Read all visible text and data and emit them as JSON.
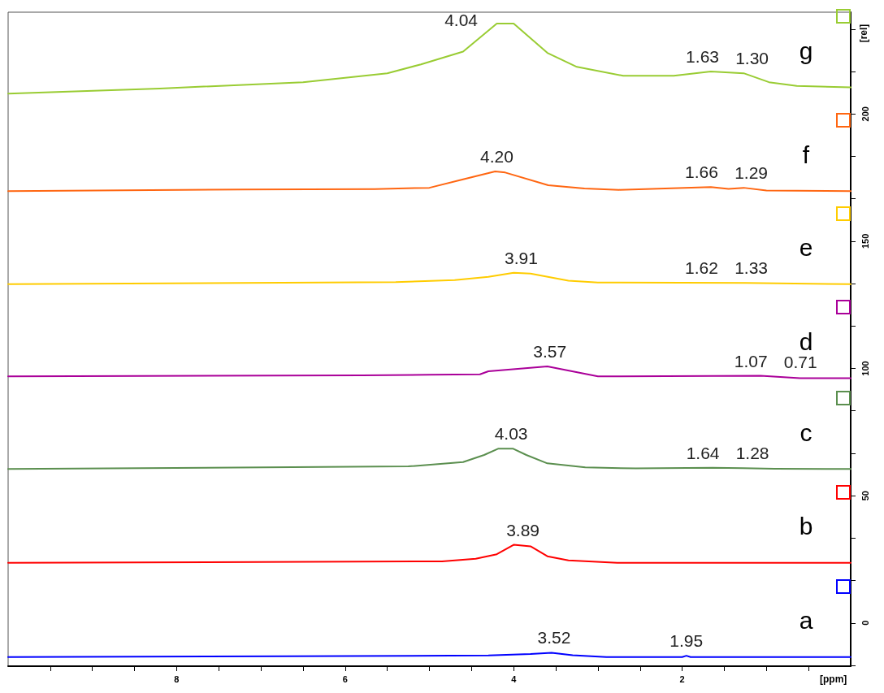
{
  "chart_data": {
    "type": "line",
    "xlabel": "[ppm]",
    "ylabel": "[rel]",
    "xlim": [
      10,
      0
    ],
    "xticks": [
      {
        "value": 9.5,
        "label": null
      },
      {
        "value": 9,
        "label": null
      },
      {
        "value": 8.5,
        "label": null
      },
      8,
      {
        "value": 7.5,
        "label": null
      },
      {
        "value": 7,
        "label": null
      },
      {
        "value": 6.5,
        "label": null
      },
      6,
      {
        "value": 5.5,
        "label": null
      },
      {
        "value": 5,
        "label": null
      },
      {
        "value": 4.5,
        "label": null
      },
      4,
      {
        "value": 3.5,
        "label": null
      },
      {
        "value": 3,
        "label": null
      },
      {
        "value": 2.5,
        "label": null
      },
      2,
      {
        "value": 1.5,
        "label": null
      },
      {
        "value": 1,
        "label": null
      },
      {
        "value": 0.5,
        "label": null
      }
    ],
    "ylim": [
      -17,
      240
    ],
    "yticks": [
      {
        "value": -16.67,
        "label": null
      },
      0,
      {
        "value": 16.67,
        "label": null
      },
      {
        "value": 33.33,
        "label": null
      },
      50,
      {
        "value": 66.67,
        "label": null
      },
      {
        "value": 83.33,
        "label": null
      },
      100,
      {
        "value": 116.67,
        "label": null
      },
      {
        "value": 133.33,
        "label": null
      },
      150,
      {
        "value": 166.67,
        "label": null
      },
      {
        "value": 183.33,
        "label": null
      },
      200,
      {
        "value": 216.67,
        "label": null
      },
      {
        "value": 233.33,
        "label": null
      }
    ],
    "marker": "none",
    "line_style": "solid",
    "series": [
      {
        "name": "a",
        "color": "#0000ff",
        "x": [
          10,
          6.7,
          4.3,
          3.8,
          3.55,
          3.3,
          2.9,
          2.0,
          1.95,
          1.9,
          0
        ],
        "values": [
          -13.4,
          -13.1,
          -12.8,
          -12.2,
          -11.7,
          -12.7,
          -13.4,
          -13.4,
          -12.9,
          -13.4,
          -13.4
        ]
      },
      {
        "name": "b",
        "color": "#ff0000",
        "x": [
          10,
          4.85,
          4.45,
          4.2,
          4.0,
          3.8,
          3.6,
          3.35,
          2.77,
          0
        ],
        "values": [
          23.6,
          24.2,
          25.2,
          27,
          30.7,
          30.1,
          26.2,
          24.6,
          23.6,
          23.6
        ]
      },
      {
        "name": "c",
        "color": "#5b8f4f",
        "x": [
          10,
          5.25,
          4.6,
          4.35,
          4.18,
          4.01,
          3.85,
          3.6,
          3.15,
          2.55,
          1.64,
          1.28,
          0.9,
          0
        ],
        "values": [
          60.5,
          61.5,
          63.2,
          66,
          68.5,
          68.5,
          66,
          62.7,
          61.1,
          60.7,
          61,
          60.8,
          60.6,
          60.5
        ]
      },
      {
        "name": "d",
        "color": "#aa0099",
        "x": [
          10,
          5.8,
          5.0,
          4.4,
          4.3,
          3.6,
          3.0,
          1.07,
          0.6,
          0
        ],
        "values": [
          96.9,
          97.3,
          97.5,
          97.7,
          98.9,
          100.8,
          96.9,
          97.1,
          96.2,
          96.2
        ]
      },
      {
        "name": "e",
        "color": "#ffcc00",
        "x": [
          10,
          5.4,
          4.7,
          4.3,
          4.0,
          3.8,
          3.35,
          3.0,
          1.25,
          0
        ],
        "values": [
          133.1,
          133.9,
          134.7,
          136,
          137.6,
          137.3,
          134.5,
          133.8,
          133.6,
          133.1
        ]
      },
      {
        "name": "f",
        "color": "#ff6611",
        "x": [
          10,
          7.2,
          5.65,
          5.0,
          4.6,
          4.22,
          4.1,
          3.59,
          3.16,
          2.75,
          1.66,
          1.45,
          1.27,
          1.0,
          0
        ],
        "values": [
          169.7,
          170.3,
          170.5,
          171,
          174.3,
          177.4,
          177,
          172,
          170.7,
          170.2,
          171.3,
          170.6,
          171,
          169.9,
          169.7
        ]
      },
      {
        "name": "g",
        "color": "#99cc33",
        "x": [
          10,
          8.2,
          6.5,
          5.5,
          5.1,
          4.6,
          4.2,
          4.0,
          3.6,
          3.25,
          2.7,
          2.1,
          1.66,
          1.27,
          0.97,
          0.64,
          0
        ],
        "values": [
          208,
          210,
          212.5,
          216,
          219.5,
          224.5,
          235.5,
          235.5,
          224,
          218.5,
          215,
          215,
          216.7,
          216,
          212.5,
          211,
          210.5
        ]
      }
    ],
    "annotations": [
      {
        "text": "3.52",
        "x": 3.52,
        "y": -11.7
      },
      {
        "text": "1.95",
        "x": 1.95,
        "y": -12.9
      },
      {
        "text": "3.89",
        "x": 3.89,
        "y": 30.7
      },
      {
        "text": "4.03",
        "x": 4.03,
        "y": 68.5
      },
      {
        "text": "1.64",
        "x": 1.64,
        "y": 61
      },
      {
        "text": "1.28",
        "x": 1.28,
        "y": 60.8
      },
      {
        "text": "3.57",
        "x": 3.57,
        "y": 100.8
      },
      {
        "text": "1.07",
        "x": 1.07,
        "y": 97.1
      },
      {
        "text": "0.71",
        "x": 0.71,
        "y": 96.5
      },
      {
        "text": "3.91",
        "x": 3.91,
        "y": 137.6
      },
      {
        "text": "1.62",
        "x": 1.62,
        "y": 133.6
      },
      {
        "text": "1.33",
        "x": 1.33,
        "y": 133.6
      },
      {
        "text": "4.20",
        "x": 4.2,
        "y": 177.4
      },
      {
        "text": "1.66",
        "x": 1.66,
        "y": 171.3
      },
      {
        "text": "1.29",
        "x": 1.29,
        "y": 171
      },
      {
        "text": "4.04",
        "x": 4.04,
        "y": 235.5
      },
      {
        "text": "1.63",
        "x": 1.63,
        "y": 216.7
      },
      {
        "text": "1.30",
        "x": 1.3,
        "y": 216
      }
    ]
  }
}
